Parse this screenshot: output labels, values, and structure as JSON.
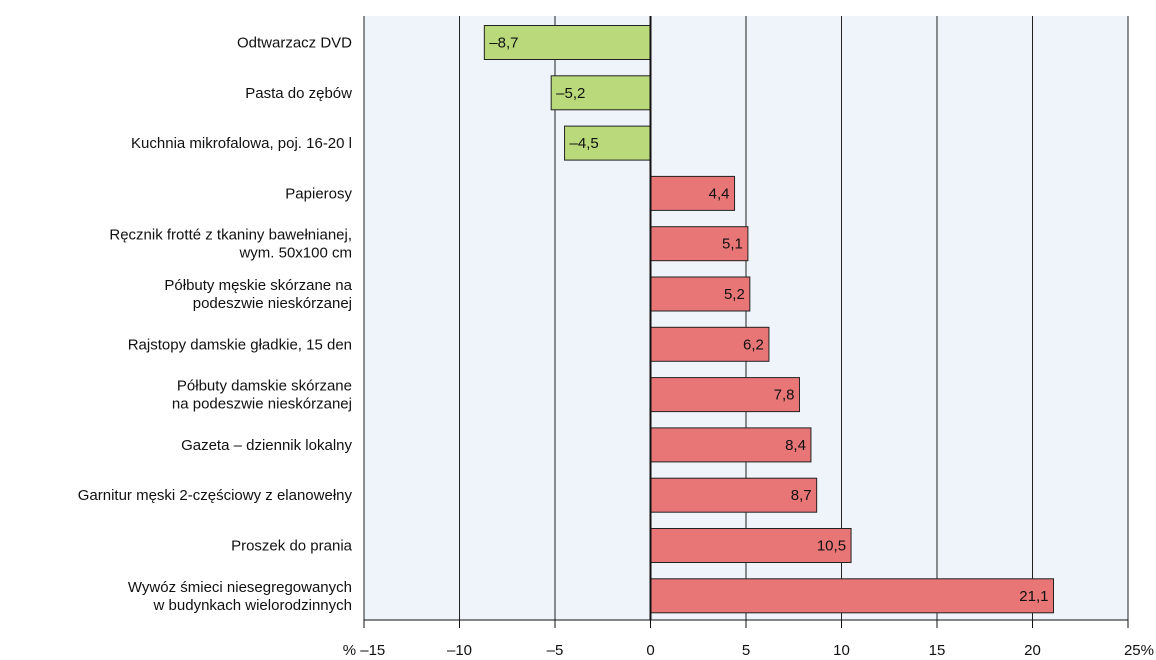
{
  "chart_data": {
    "type": "bar",
    "orientation": "horizontal",
    "categories": [
      [
        "Odtwarzacz DVD"
      ],
      [
        "Pasta do zębów"
      ],
      [
        "Kuchnia mikrofalowa, poj. 16-20 l"
      ],
      [
        "Papierosy"
      ],
      [
        "Ręcznik frotté z tkaniny bawełnianej,",
        "wym. 50x100 cm"
      ],
      [
        "Półbuty męskie skórzane na",
        "podeszwie nieskórzanej"
      ],
      [
        "Rajstopy damskie gładkie, 15 den"
      ],
      [
        "Półbuty damskie skórzane",
        "na podeszwie nieskórzanej"
      ],
      [
        "Gazeta – dziennik lokalny"
      ],
      [
        "Garnitur męski 2-częściowy z elanowełny"
      ],
      [
        "Proszek do prania"
      ],
      [
        "Wywóz śmieci niesegregowanych",
        "w budynkach wielorodzinnych"
      ]
    ],
    "values": [
      -8.7,
      -5.2,
      -4.5,
      4.4,
      5.1,
      5.2,
      6.2,
      7.8,
      8.4,
      8.7,
      10.5,
      21.1
    ],
    "value_labels": [
      "–8,7",
      "–5,2",
      "–4,5",
      "4,4",
      "5,1",
      "5,2",
      "6,2",
      "7,8",
      "8,4",
      "8,7",
      "10,5",
      "21,1"
    ],
    "xlim": [
      -15,
      25
    ],
    "x_ticks": [
      -15,
      -10,
      -5,
      0,
      5,
      10,
      15,
      20,
      25
    ],
    "x_tick_labels": [
      "% –15",
      "–10",
      "–5",
      "0",
      "5",
      "10",
      "15",
      "20",
      "25%"
    ],
    "grid": true,
    "colors": {
      "negative": "#b9d97a",
      "positive": "#e87676",
      "plot_background": "#eef4fa",
      "bar_border": "#222222",
      "grid": "#222222"
    }
  }
}
